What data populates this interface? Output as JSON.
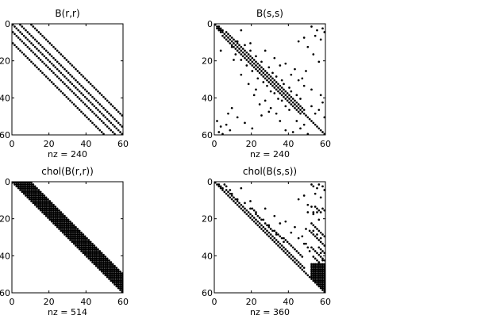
{
  "figure": {
    "background": "#ffffff",
    "marker_color": "#000000"
  },
  "chart_data": [
    {
      "type": "scatter",
      "subtype": "sparsity-pattern",
      "title": "B(r,r)",
      "xlabel": "nz = 240",
      "ylabel": "",
      "xlim": [
        0,
        60
      ],
      "ylim": [
        0,
        60
      ],
      "y_reversed": true,
      "xticks": [
        0,
        20,
        40,
        60
      ],
      "yticks": [
        0,
        20,
        40,
        60
      ],
      "x_tick_labels": [
        "0",
        "20",
        "40",
        "60"
      ],
      "y_tick_labels": [
        "0",
        "20",
        "40",
        "60"
      ],
      "nz": 240,
      "pattern": {
        "kind": "bands",
        "offsets": [
          0,
          4,
          10
        ],
        "symmetric": true
      },
      "grid": false,
      "legend": "none"
    },
    {
      "type": "scatter",
      "subtype": "sparsity-pattern",
      "title": "B(s,s)",
      "xlabel": "nz = 240",
      "ylabel": "",
      "xlim": [
        0,
        60
      ],
      "ylim": [
        0,
        60
      ],
      "y_reversed": true,
      "xticks": [
        0,
        20,
        40,
        60
      ],
      "yticks": [
        0,
        20,
        40,
        60
      ],
      "x_tick_labels": [
        "0",
        "20",
        "40",
        "60"
      ],
      "y_tick_labels": [
        "0",
        "20",
        "40",
        "60"
      ],
      "nz": 240,
      "pattern": {
        "kind": "symmetric-points",
        "diagonal": true,
        "offdiag": [
          [
            1,
            2
          ],
          [
            2,
            3
          ],
          [
            3,
            4
          ],
          [
            4,
            6
          ],
          [
            5,
            7
          ],
          [
            6,
            8
          ],
          [
            7,
            9
          ],
          [
            8,
            10
          ],
          [
            9,
            11
          ],
          [
            10,
            12
          ],
          [
            11,
            13
          ],
          [
            12,
            14
          ],
          [
            13,
            15
          ],
          [
            14,
            16
          ],
          [
            15,
            17
          ],
          [
            16,
            18
          ],
          [
            17,
            19
          ],
          [
            18,
            20
          ],
          [
            19,
            21
          ],
          [
            20,
            22
          ],
          [
            21,
            23
          ],
          [
            22,
            24
          ],
          [
            23,
            25
          ],
          [
            24,
            26
          ],
          [
            25,
            27
          ],
          [
            26,
            28
          ],
          [
            27,
            29
          ],
          [
            28,
            30
          ],
          [
            29,
            31
          ],
          [
            30,
            32
          ],
          [
            31,
            33
          ],
          [
            32,
            34
          ],
          [
            33,
            35
          ],
          [
            34,
            36
          ],
          [
            35,
            37
          ],
          [
            36,
            38
          ],
          [
            37,
            39
          ],
          [
            38,
            40
          ],
          [
            39,
            41
          ],
          [
            40,
            42
          ],
          [
            41,
            43
          ],
          [
            42,
            44
          ],
          [
            43,
            45
          ],
          [
            44,
            46
          ],
          [
            45,
            47
          ],
          [
            46,
            48
          ],
          [
            1,
            52
          ],
          [
            3,
            55
          ],
          [
            2,
            58
          ],
          [
            4,
            59
          ],
          [
            6,
            54
          ],
          [
            8,
            57
          ],
          [
            9,
            12
          ],
          [
            11,
            16
          ],
          [
            14,
            19
          ],
          [
            17,
            22
          ],
          [
            20,
            25
          ],
          [
            23,
            29
          ],
          [
            26,
            31
          ],
          [
            28,
            33
          ],
          [
            30,
            36
          ],
          [
            32,
            37
          ],
          [
            34,
            40
          ],
          [
            36,
            41
          ],
          [
            38,
            44
          ],
          [
            40,
            46
          ],
          [
            3,
            14
          ],
          [
            10,
            19
          ],
          [
            14,
            27
          ],
          [
            18,
            32
          ],
          [
            22,
            35
          ],
          [
            30,
            45
          ],
          [
            12,
            50
          ],
          [
            16,
            53
          ],
          [
            20,
            56
          ],
          [
            25,
            49
          ],
          [
            35,
            52
          ],
          [
            38,
            57
          ],
          [
            42,
            58
          ],
          [
            44,
            52
          ],
          [
            46,
            56
          ],
          [
            48,
            54
          ],
          [
            50,
            59
          ],
          [
            29,
            47
          ],
          [
            33,
            48
          ],
          [
            7,
            48
          ],
          [
            9,
            45
          ],
          [
            24,
            43
          ],
          [
            27,
            41
          ],
          [
            21,
            38
          ]
        ]
      },
      "grid": false,
      "legend": "none"
    },
    {
      "type": "scatter",
      "subtype": "sparsity-pattern",
      "title": "chol(B(r,r))",
      "xlabel": "nz = 514",
      "ylabel": "",
      "xlim": [
        0,
        60
      ],
      "ylim": [
        0,
        60
      ],
      "y_reversed": true,
      "xticks": [
        0,
        20,
        40,
        60
      ],
      "yticks": [
        0,
        20,
        40,
        60
      ],
      "x_tick_labels": [
        "0",
        "20",
        "40",
        "60"
      ],
      "y_tick_labels": [
        "0",
        "20",
        "40",
        "60"
      ],
      "nz": 514,
      "pattern": {
        "kind": "upper-band",
        "width": 10
      },
      "grid": false,
      "legend": "none"
    },
    {
      "type": "scatter",
      "subtype": "sparsity-pattern",
      "title": "chol(B(s,s))",
      "xlabel": "nz = 360",
      "ylabel": "",
      "xlim": [
        0,
        60
      ],
      "ylim": [
        0,
        60
      ],
      "y_reversed": true,
      "xticks": [
        0,
        20,
        40,
        60
      ],
      "yticks": [
        0,
        20,
        40,
        60
      ],
      "x_tick_labels": [
        "0",
        "20",
        "40",
        "60"
      ],
      "y_tick_labels": [
        "0",
        "20",
        "40",
        "60"
      ],
      "nz": 360,
      "pattern": {
        "kind": "upper-points",
        "diagonal": true,
        "points": [
          [
            1,
            2
          ],
          [
            2,
            3
          ],
          [
            3,
            4
          ],
          [
            4,
            6
          ],
          [
            5,
            7
          ],
          [
            6,
            8
          ],
          [
            7,
            9
          ],
          [
            8,
            10
          ],
          [
            9,
            11
          ],
          [
            10,
            12
          ],
          [
            11,
            13
          ],
          [
            12,
            14
          ],
          [
            13,
            15
          ],
          [
            14,
            16
          ],
          [
            15,
            17
          ],
          [
            16,
            18
          ],
          [
            17,
            19
          ],
          [
            18,
            20
          ],
          [
            19,
            21
          ],
          [
            20,
            22
          ],
          [
            21,
            23
          ],
          [
            22,
            24
          ],
          [
            23,
            25
          ],
          [
            24,
            26
          ],
          [
            25,
            27
          ],
          [
            26,
            28
          ],
          [
            27,
            29
          ],
          [
            28,
            30
          ],
          [
            29,
            31
          ],
          [
            30,
            32
          ],
          [
            31,
            33
          ],
          [
            32,
            34
          ],
          [
            33,
            35
          ],
          [
            34,
            36
          ],
          [
            35,
            37
          ],
          [
            36,
            38
          ],
          [
            37,
            39
          ],
          [
            38,
            40
          ],
          [
            39,
            41
          ],
          [
            40,
            42
          ],
          [
            41,
            43
          ],
          [
            42,
            44
          ],
          [
            43,
            45
          ],
          [
            44,
            46
          ],
          [
            45,
            47
          ],
          [
            46,
            48
          ],
          [
            9,
            12
          ],
          [
            11,
            16
          ],
          [
            14,
            19
          ],
          [
            17,
            22
          ],
          [
            20,
            25
          ],
          [
            23,
            29
          ],
          [
            26,
            31
          ],
          [
            28,
            33
          ],
          [
            30,
            36
          ],
          [
            32,
            37
          ],
          [
            3,
            14
          ],
          [
            10,
            19
          ],
          [
            14,
            27
          ],
          [
            18,
            32
          ],
          [
            22,
            35
          ],
          [
            30,
            45
          ],
          [
            29,
            47
          ],
          [
            33,
            48
          ],
          [
            24,
            43
          ],
          [
            27,
            41
          ],
          [
            21,
            38
          ],
          [
            1,
            5
          ],
          [
            2,
            6
          ],
          [
            4,
            8
          ],
          [
            6,
            9
          ],
          [
            14,
            20
          ],
          [
            15,
            21
          ],
          [
            16,
            22
          ],
          [
            18,
            23
          ],
          [
            19,
            24
          ],
          [
            20,
            26
          ],
          [
            22,
            27
          ],
          [
            23,
            28
          ],
          [
            24,
            29
          ],
          [
            25,
            30
          ],
          [
            26,
            32
          ],
          [
            27,
            33
          ],
          [
            28,
            34
          ],
          [
            29,
            35
          ],
          [
            30,
            37
          ],
          [
            31,
            38
          ],
          [
            32,
            39
          ],
          [
            33,
            40
          ],
          [
            34,
            41
          ],
          [
            35,
            42
          ],
          [
            36,
            43
          ],
          [
            37,
            44
          ],
          [
            38,
            45
          ],
          [
            39,
            46
          ],
          [
            40,
            47
          ],
          [
            1,
            52
          ],
          [
            2,
            53
          ],
          [
            3,
            55
          ],
          [
            1,
            56
          ],
          [
            2,
            58
          ],
          [
            4,
            59
          ],
          [
            6,
            54
          ],
          [
            8,
            57
          ],
          [
            7,
            48
          ],
          [
            9,
            45
          ],
          [
            12,
            50
          ],
          [
            16,
            53
          ],
          [
            20,
            56
          ],
          [
            25,
            49
          ],
          [
            35,
            52
          ],
          [
            38,
            57
          ],
          [
            42,
            58
          ],
          [
            44,
            52
          ],
          [
            46,
            56
          ],
          [
            48,
            54
          ],
          [
            50,
            59
          ],
          [
            13,
            54
          ],
          [
            14,
            55
          ],
          [
            15,
            56
          ],
          [
            16,
            57
          ],
          [
            14,
            58
          ],
          [
            15,
            59
          ],
          [
            16,
            55
          ],
          [
            13,
            52
          ],
          [
            17,
            53
          ],
          [
            16,
            50
          ],
          [
            22,
            52
          ],
          [
            23,
            53
          ],
          [
            24,
            54
          ],
          [
            25,
            55
          ],
          [
            26,
            56
          ],
          [
            27,
            57
          ],
          [
            28,
            58
          ],
          [
            29,
            59
          ],
          [
            26,
            53
          ],
          [
            28,
            55
          ],
          [
            30,
            57
          ],
          [
            26,
            51
          ],
          [
            27,
            52
          ],
          [
            28,
            53
          ],
          [
            29,
            54
          ],
          [
            30,
            55
          ],
          [
            31,
            56
          ],
          [
            32,
            57
          ],
          [
            33,
            58
          ],
          [
            34,
            59
          ],
          [
            35,
            56
          ],
          [
            36,
            57
          ],
          [
            37,
            58
          ],
          [
            38,
            59
          ],
          [
            36,
            53
          ],
          [
            37,
            54
          ],
          [
            38,
            55
          ],
          [
            39,
            56
          ],
          [
            40,
            57
          ],
          [
            41,
            58
          ],
          [
            42,
            59
          ],
          [
            40,
            53
          ],
          [
            41,
            54
          ],
          [
            42,
            55
          ],
          [
            43,
            56
          ],
          [
            44,
            57
          ],
          [
            45,
            58
          ],
          [
            46,
            59
          ],
          [
            33,
            49
          ],
          [
            35,
            50
          ],
          [
            37,
            51
          ]
        ]
      },
      "dense_lower_right_block": {
        "rows_from": 44,
        "cols_from": 52,
        "to": 59
      },
      "grid": false,
      "legend": "none"
    }
  ]
}
